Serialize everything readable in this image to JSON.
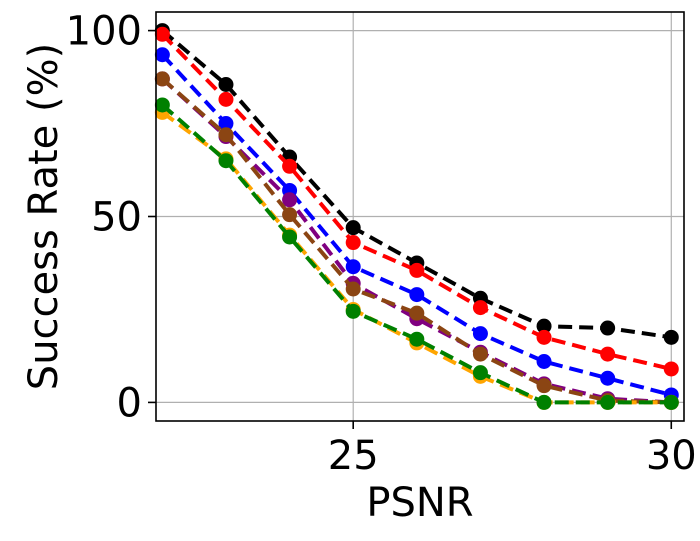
{
  "chart_data": {
    "type": "line",
    "xlabel": "PSNR",
    "ylabel": "Success Rate (%)",
    "xlim": [
      21.9,
      30.2
    ],
    "ylim": [
      -5,
      105
    ],
    "xticks": [
      25,
      30
    ],
    "yticks": [
      0,
      50,
      100
    ],
    "x_tick_labels": [
      "25",
      "30"
    ],
    "y_tick_labels": [
      "0",
      "50",
      "100"
    ],
    "grid": true,
    "legend": "none",
    "x": [
      22,
      23,
      24,
      25,
      26,
      27,
      28,
      29,
      30
    ],
    "series": [
      {
        "color": "#000000",
        "values": [
          100,
          85.5,
          66,
          47,
          37.5,
          28,
          20.5,
          20,
          17.5
        ]
      },
      {
        "color": "#ff0000",
        "values": [
          99,
          81.5,
          63.5,
          43,
          35.5,
          25.5,
          17.5,
          13,
          9
        ]
      },
      {
        "color": "#0000ff",
        "values": [
          93.5,
          75,
          57,
          36.5,
          29,
          18.5,
          11,
          6.5,
          2
        ]
      },
      {
        "color": "#800080",
        "values": [
          87,
          71.5,
          54.5,
          32,
          22.5,
          13.5,
          5,
          1,
          0
        ]
      },
      {
        "color": "#8b4513",
        "values": [
          87,
          72,
          50.5,
          30.5,
          24,
          13,
          4.5,
          0.5,
          0
        ]
      },
      {
        "color": "#ffa500",
        "values": [
          78,
          65.5,
          45,
          25,
          16,
          7,
          0,
          0,
          0
        ]
      },
      {
        "color": "#008000",
        "values": [
          80,
          65,
          44.5,
          24.5,
          17,
          8,
          0,
          0,
          0
        ]
      }
    ]
  }
}
